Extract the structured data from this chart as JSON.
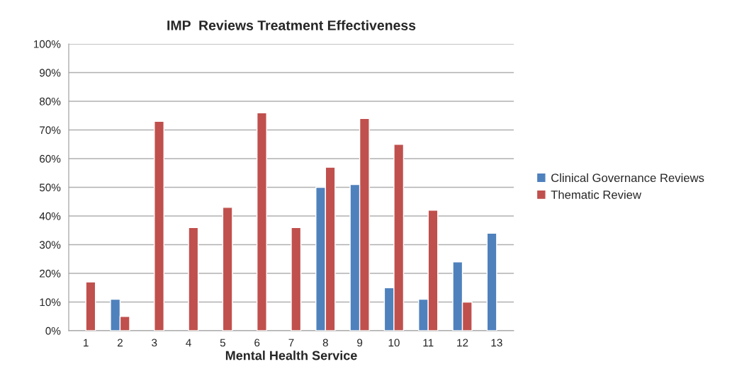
{
  "chart_data": {
    "type": "bar",
    "title": "IMP  Reviews Treatment Effectiveness",
    "xlabel": "Mental Health Service",
    "categories": [
      "1",
      "2",
      "3",
      "4",
      "5",
      "6",
      "7",
      "8",
      "9",
      "10",
      "11",
      "12",
      "13"
    ],
    "series": [
      {
        "name": "Clinical Governance Reviews",
        "color": "#4f81bd",
        "values": [
          null,
          11,
          null,
          null,
          null,
          null,
          null,
          50,
          51,
          15,
          11,
          24,
          34
        ]
      },
      {
        "name": "Thematic Review",
        "color": "#c0504d",
        "values": [
          17,
          5,
          73,
          36,
          43,
          76,
          36,
          57,
          74,
          65,
          42,
          10,
          null
        ]
      }
    ],
    "ylim": [
      0,
      100
    ],
    "yticks": [
      {
        "value": 0,
        "label": "0%"
      },
      {
        "value": 10,
        "label": "10%"
      },
      {
        "value": 20,
        "label": "20%"
      },
      {
        "value": 30,
        "label": "30%"
      },
      {
        "value": 40,
        "label": "40%"
      },
      {
        "value": 50,
        "label": "50%"
      },
      {
        "value": 60,
        "label": "60%"
      },
      {
        "value": 70,
        "label": "70%"
      },
      {
        "value": 80,
        "label": "80%"
      },
      {
        "value": 90,
        "label": "90%"
      },
      {
        "value": 100,
        "label": "100%"
      }
    ],
    "grid": "y",
    "legend": "right"
  }
}
